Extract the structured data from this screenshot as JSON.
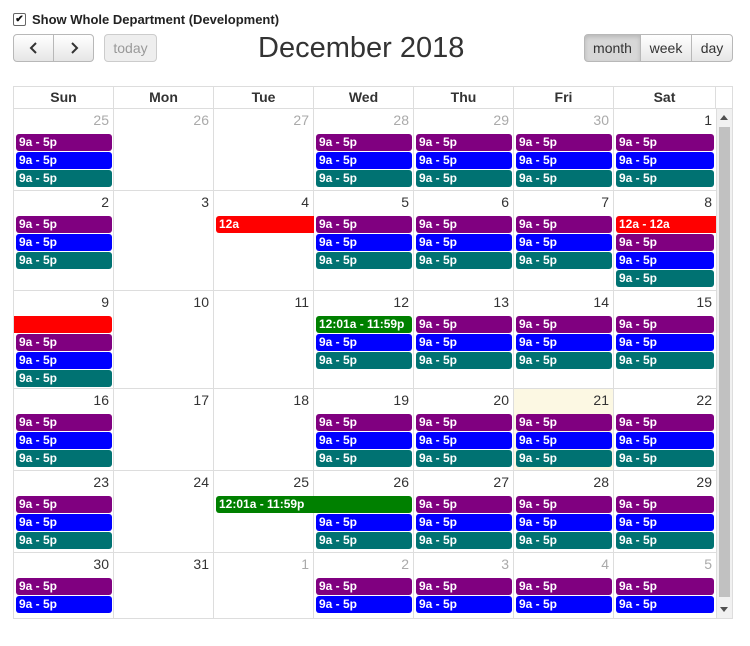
{
  "header": {
    "checkbox_checked": true,
    "checkbox_label": "Show Whole Department (Development)",
    "title": "December 2018",
    "today_label": "today",
    "view_buttons": {
      "month": "month",
      "week": "week",
      "day": "day"
    },
    "active_view": "month"
  },
  "colors": {
    "purple": "#800080",
    "blue": "#0000ff",
    "teal": "#007272",
    "red": "#ff0000",
    "green": "#008000",
    "today_bg": "#fcf8e3"
  },
  "calendar": {
    "day_headers": [
      "Sun",
      "Mon",
      "Tue",
      "Wed",
      "Thu",
      "Fri",
      "Sat"
    ],
    "weeks": [
      {
        "days": [
          {
            "num": "25",
            "other": true
          },
          {
            "num": "26",
            "other": true
          },
          {
            "num": "27",
            "other": true
          },
          {
            "num": "28",
            "other": true
          },
          {
            "num": "29",
            "other": true
          },
          {
            "num": "30",
            "other": true
          },
          {
            "num": "1",
            "other": false
          }
        ],
        "events": [
          {
            "col": 0,
            "span": 1,
            "slot": 0,
            "color": "purple",
            "label": "9a - 5p"
          },
          {
            "col": 0,
            "span": 1,
            "slot": 1,
            "color": "blue",
            "label": "9a - 5p"
          },
          {
            "col": 0,
            "span": 1,
            "slot": 2,
            "color": "teal",
            "label": "9a - 5p"
          },
          {
            "col": 3,
            "span": 1,
            "slot": 0,
            "color": "purple",
            "label": "9a - 5p"
          },
          {
            "col": 3,
            "span": 1,
            "slot": 1,
            "color": "blue",
            "label": "9a - 5p"
          },
          {
            "col": 3,
            "span": 1,
            "slot": 2,
            "color": "teal",
            "label": "9a - 5p"
          },
          {
            "col": 4,
            "span": 1,
            "slot": 0,
            "color": "purple",
            "label": "9a - 5p"
          },
          {
            "col": 4,
            "span": 1,
            "slot": 1,
            "color": "blue",
            "label": "9a - 5p"
          },
          {
            "col": 4,
            "span": 1,
            "slot": 2,
            "color": "teal",
            "label": "9a - 5p"
          },
          {
            "col": 5,
            "span": 1,
            "slot": 0,
            "color": "purple",
            "label": "9a - 5p"
          },
          {
            "col": 5,
            "span": 1,
            "slot": 1,
            "color": "blue",
            "label": "9a - 5p"
          },
          {
            "col": 5,
            "span": 1,
            "slot": 2,
            "color": "teal",
            "label": "9a - 5p"
          },
          {
            "col": 6,
            "span": 1,
            "slot": 0,
            "color": "purple",
            "label": "9a - 5p"
          },
          {
            "col": 6,
            "span": 1,
            "slot": 1,
            "color": "blue",
            "label": "9a - 5p"
          },
          {
            "col": 6,
            "span": 1,
            "slot": 2,
            "color": "teal",
            "label": "9a - 5p"
          }
        ]
      },
      {
        "days": [
          {
            "num": "2",
            "other": false
          },
          {
            "num": "3",
            "other": false
          },
          {
            "num": "4",
            "other": false
          },
          {
            "num": "5",
            "other": false
          },
          {
            "num": "6",
            "other": false
          },
          {
            "num": "7",
            "other": false
          },
          {
            "num": "8",
            "other": false
          }
        ],
        "events": [
          {
            "col": 0,
            "span": 1,
            "slot": 0,
            "color": "purple",
            "label": "9a - 5p"
          },
          {
            "col": 0,
            "span": 1,
            "slot": 1,
            "color": "blue",
            "label": "9a - 5p"
          },
          {
            "col": 0,
            "span": 1,
            "slot": 2,
            "color": "teal",
            "label": "9a - 5p"
          },
          {
            "col": 2,
            "span": 1,
            "slot": 0,
            "color": "red",
            "label": "12a",
            "cont_right": true
          },
          {
            "col": 3,
            "span": 1,
            "slot": 0,
            "color": "purple",
            "label": "9a - 5p"
          },
          {
            "col": 3,
            "span": 1,
            "slot": 1,
            "color": "blue",
            "label": "9a - 5p"
          },
          {
            "col": 3,
            "span": 1,
            "slot": 2,
            "color": "teal",
            "label": "9a - 5p"
          },
          {
            "col": 4,
            "span": 1,
            "slot": 0,
            "color": "purple",
            "label": "9a - 5p"
          },
          {
            "col": 4,
            "span": 1,
            "slot": 1,
            "color": "blue",
            "label": "9a - 5p"
          },
          {
            "col": 4,
            "span": 1,
            "slot": 2,
            "color": "teal",
            "label": "9a - 5p"
          },
          {
            "col": 5,
            "span": 1,
            "slot": 0,
            "color": "purple",
            "label": "9a - 5p"
          },
          {
            "col": 5,
            "span": 1,
            "slot": 1,
            "color": "blue",
            "label": "9a - 5p"
          },
          {
            "col": 5,
            "span": 1,
            "slot": 2,
            "color": "teal",
            "label": "9a - 5p"
          },
          {
            "col": 6,
            "span": 1,
            "slot": 0,
            "color": "red",
            "label": "12a - 12a",
            "cont_right": true
          },
          {
            "col": 6,
            "span": 1,
            "slot": 1,
            "color": "purple",
            "label": "9a - 5p"
          },
          {
            "col": 6,
            "span": 1,
            "slot": 2,
            "color": "blue",
            "label": "9a - 5p"
          },
          {
            "col": 6,
            "span": 1,
            "slot": 3,
            "color": "teal",
            "label": "9a - 5p"
          }
        ]
      },
      {
        "days": [
          {
            "num": "9",
            "other": false
          },
          {
            "num": "10",
            "other": false
          },
          {
            "num": "11",
            "other": false
          },
          {
            "num": "12",
            "other": false
          },
          {
            "num": "13",
            "other": false
          },
          {
            "num": "14",
            "other": false
          },
          {
            "num": "15",
            "other": false
          }
        ],
        "events": [
          {
            "col": 0,
            "span": 1,
            "slot": 0,
            "color": "red",
            "label": "",
            "cont_left": true
          },
          {
            "col": 0,
            "span": 1,
            "slot": 1,
            "color": "purple",
            "label": "9a - 5p"
          },
          {
            "col": 0,
            "span": 1,
            "slot": 2,
            "color": "blue",
            "label": "9a - 5p"
          },
          {
            "col": 0,
            "span": 1,
            "slot": 3,
            "color": "teal",
            "label": "9a - 5p"
          },
          {
            "col": 3,
            "span": 1,
            "slot": 0,
            "color": "green",
            "label": "12:01a - 11:59p"
          },
          {
            "col": 3,
            "span": 1,
            "slot": 1,
            "color": "blue",
            "label": "9a - 5p"
          },
          {
            "col": 3,
            "span": 1,
            "slot": 2,
            "color": "teal",
            "label": "9a - 5p"
          },
          {
            "col": 4,
            "span": 1,
            "slot": 0,
            "color": "purple",
            "label": "9a - 5p"
          },
          {
            "col": 4,
            "span": 1,
            "slot": 1,
            "color": "blue",
            "label": "9a - 5p"
          },
          {
            "col": 4,
            "span": 1,
            "slot": 2,
            "color": "teal",
            "label": "9a - 5p"
          },
          {
            "col": 5,
            "span": 1,
            "slot": 0,
            "color": "purple",
            "label": "9a - 5p"
          },
          {
            "col": 5,
            "span": 1,
            "slot": 1,
            "color": "blue",
            "label": "9a - 5p"
          },
          {
            "col": 5,
            "span": 1,
            "slot": 2,
            "color": "teal",
            "label": "9a - 5p"
          },
          {
            "col": 6,
            "span": 1,
            "slot": 0,
            "color": "purple",
            "label": "9a - 5p"
          },
          {
            "col": 6,
            "span": 1,
            "slot": 1,
            "color": "blue",
            "label": "9a - 5p"
          },
          {
            "col": 6,
            "span": 1,
            "slot": 2,
            "color": "teal",
            "label": "9a - 5p"
          }
        ]
      },
      {
        "days": [
          {
            "num": "16",
            "other": false
          },
          {
            "num": "17",
            "other": false
          },
          {
            "num": "18",
            "other": false
          },
          {
            "num": "19",
            "other": false
          },
          {
            "num": "20",
            "other": false
          },
          {
            "num": "21",
            "other": false,
            "today": true
          },
          {
            "num": "22",
            "other": false
          }
        ],
        "events": [
          {
            "col": 0,
            "span": 1,
            "slot": 0,
            "color": "purple",
            "label": "9a - 5p"
          },
          {
            "col": 0,
            "span": 1,
            "slot": 1,
            "color": "blue",
            "label": "9a - 5p"
          },
          {
            "col": 0,
            "span": 1,
            "slot": 2,
            "color": "teal",
            "label": "9a - 5p"
          },
          {
            "col": 3,
            "span": 1,
            "slot": 0,
            "color": "purple",
            "label": "9a - 5p"
          },
          {
            "col": 3,
            "span": 1,
            "slot": 1,
            "color": "blue",
            "label": "9a - 5p"
          },
          {
            "col": 3,
            "span": 1,
            "slot": 2,
            "color": "teal",
            "label": "9a - 5p"
          },
          {
            "col": 4,
            "span": 1,
            "slot": 0,
            "color": "purple",
            "label": "9a - 5p"
          },
          {
            "col": 4,
            "span": 1,
            "slot": 1,
            "color": "blue",
            "label": "9a - 5p"
          },
          {
            "col": 4,
            "span": 1,
            "slot": 2,
            "color": "teal",
            "label": "9a - 5p"
          },
          {
            "col": 5,
            "span": 1,
            "slot": 0,
            "color": "purple",
            "label": "9a - 5p"
          },
          {
            "col": 5,
            "span": 1,
            "slot": 1,
            "color": "blue",
            "label": "9a - 5p"
          },
          {
            "col": 5,
            "span": 1,
            "slot": 2,
            "color": "teal",
            "label": "9a - 5p"
          },
          {
            "col": 6,
            "span": 1,
            "slot": 0,
            "color": "purple",
            "label": "9a - 5p"
          },
          {
            "col": 6,
            "span": 1,
            "slot": 1,
            "color": "blue",
            "label": "9a - 5p"
          },
          {
            "col": 6,
            "span": 1,
            "slot": 2,
            "color": "teal",
            "label": "9a - 5p"
          }
        ]
      },
      {
        "days": [
          {
            "num": "23",
            "other": false
          },
          {
            "num": "24",
            "other": false
          },
          {
            "num": "25",
            "other": false
          },
          {
            "num": "26",
            "other": false
          },
          {
            "num": "27",
            "other": false
          },
          {
            "num": "28",
            "other": false
          },
          {
            "num": "29",
            "other": false
          }
        ],
        "events": [
          {
            "col": 0,
            "span": 1,
            "slot": 0,
            "color": "purple",
            "label": "9a - 5p"
          },
          {
            "col": 0,
            "span": 1,
            "slot": 1,
            "color": "blue",
            "label": "9a - 5p"
          },
          {
            "col": 0,
            "span": 1,
            "slot": 2,
            "color": "teal",
            "label": "9a - 5p"
          },
          {
            "col": 2,
            "span": 2,
            "slot": 0,
            "color": "green",
            "label": "12:01a - 11:59p"
          },
          {
            "col": 3,
            "span": 1,
            "slot": 1,
            "color": "blue",
            "label": "9a - 5p"
          },
          {
            "col": 3,
            "span": 1,
            "slot": 2,
            "color": "teal",
            "label": "9a - 5p"
          },
          {
            "col": 4,
            "span": 1,
            "slot": 0,
            "color": "purple",
            "label": "9a - 5p"
          },
          {
            "col": 4,
            "span": 1,
            "slot": 1,
            "color": "blue",
            "label": "9a - 5p"
          },
          {
            "col": 4,
            "span": 1,
            "slot": 2,
            "color": "teal",
            "label": "9a - 5p"
          },
          {
            "col": 5,
            "span": 1,
            "slot": 0,
            "color": "purple",
            "label": "9a - 5p"
          },
          {
            "col": 5,
            "span": 1,
            "slot": 1,
            "color": "blue",
            "label": "9a - 5p"
          },
          {
            "col": 5,
            "span": 1,
            "slot": 2,
            "color": "teal",
            "label": "9a - 5p"
          },
          {
            "col": 6,
            "span": 1,
            "slot": 0,
            "color": "purple",
            "label": "9a - 5p"
          },
          {
            "col": 6,
            "span": 1,
            "slot": 1,
            "color": "blue",
            "label": "9a - 5p"
          },
          {
            "col": 6,
            "span": 1,
            "slot": 2,
            "color": "teal",
            "label": "9a - 5p"
          }
        ]
      },
      {
        "days": [
          {
            "num": "30",
            "other": false
          },
          {
            "num": "31",
            "other": false
          },
          {
            "num": "1",
            "other": true
          },
          {
            "num": "2",
            "other": true
          },
          {
            "num": "3",
            "other": true
          },
          {
            "num": "4",
            "other": true
          },
          {
            "num": "5",
            "other": true
          }
        ],
        "events": [
          {
            "col": 0,
            "span": 1,
            "slot": 0,
            "color": "purple",
            "label": "9a - 5p"
          },
          {
            "col": 0,
            "span": 1,
            "slot": 1,
            "color": "blue",
            "label": "9a - 5p"
          },
          {
            "col": 3,
            "span": 1,
            "slot": 0,
            "color": "purple",
            "label": "9a - 5p"
          },
          {
            "col": 3,
            "span": 1,
            "slot": 1,
            "color": "blue",
            "label": "9a - 5p"
          },
          {
            "col": 4,
            "span": 1,
            "slot": 0,
            "color": "purple",
            "label": "9a - 5p"
          },
          {
            "col": 4,
            "span": 1,
            "slot": 1,
            "color": "blue",
            "label": "9a - 5p"
          },
          {
            "col": 5,
            "span": 1,
            "slot": 0,
            "color": "purple",
            "label": "9a - 5p"
          },
          {
            "col": 5,
            "span": 1,
            "slot": 1,
            "color": "blue",
            "label": "9a - 5p"
          },
          {
            "col": 6,
            "span": 1,
            "slot": 0,
            "color": "purple",
            "label": "9a - 5p"
          },
          {
            "col": 6,
            "span": 1,
            "slot": 1,
            "color": "blue",
            "label": "9a - 5p"
          }
        ]
      }
    ]
  }
}
